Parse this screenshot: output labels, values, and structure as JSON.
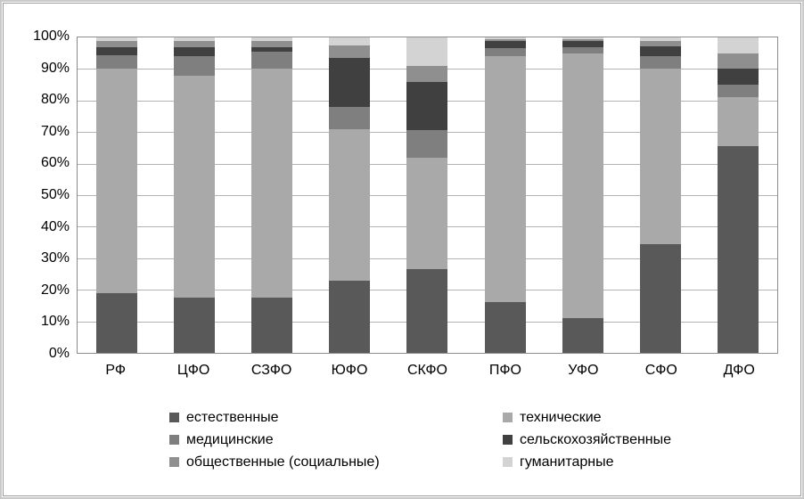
{
  "chart_data": {
    "type": "bar",
    "subtype": "stacked-100-percent",
    "title": "",
    "xlabel": "",
    "ylabel": "",
    "ylim": [
      0,
      100
    ],
    "grid": true,
    "legend_position": "bottom",
    "categories": [
      "РФ",
      "ЦФО",
      "СЗФО",
      "ЮФО",
      "СКФО",
      "ПФО",
      "УФО",
      "СФО",
      "ДФО"
    ],
    "yticks": [
      "0%",
      "10%",
      "20%",
      "30%",
      "40%",
      "50%",
      "60%",
      "70%",
      "80%",
      "90%",
      "100%"
    ],
    "series": [
      {
        "name": "естественные",
        "color": "#595959",
        "values": [
          19,
          17.5,
          17.5,
          23,
          26.5,
          16,
          11,
          34.5,
          65.5
        ]
      },
      {
        "name": "технические",
        "color": "#a9a9a9",
        "values": [
          71,
          70.5,
          72.5,
          48,
          35.5,
          78,
          84,
          55.5,
          15.5
        ]
      },
      {
        "name": "медицинские",
        "color": "#7f7f7f",
        "values": [
          4.5,
          6,
          5.5,
          7,
          8.5,
          2.5,
          2,
          4,
          4
        ]
      },
      {
        "name": "сельскохозяйственные",
        "color": "#404040",
        "values": [
          2.5,
          3,
          1.5,
          15.5,
          15.5,
          2.5,
          2,
          3.3,
          5
        ]
      },
      {
        "name": "общественные (социальные)",
        "color": "#8f8f8f",
        "values": [
          2,
          2,
          2,
          4,
          5,
          0.5,
          0.5,
          1.7,
          5
        ]
      },
      {
        "name": "гуманитарные",
        "color": "#d3d3d3",
        "values": [
          1,
          1,
          1,
          2.5,
          9,
          0.5,
          0.5,
          1,
          5
        ]
      }
    ]
  }
}
